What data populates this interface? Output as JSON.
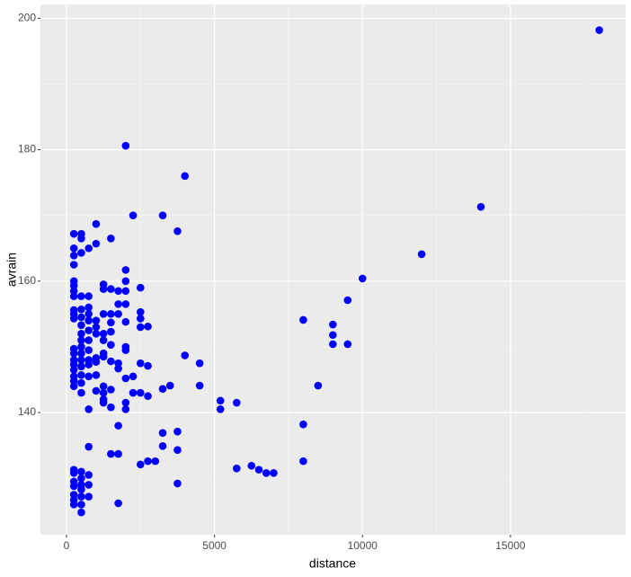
{
  "chart_data": {
    "type": "scatter",
    "xlabel": "distance",
    "ylabel": "avrain",
    "x": [
      18000,
      14000,
      12000,
      10000,
      9500,
      9500,
      9000,
      9000,
      9000,
      8500,
      8000,
      8000,
      8000,
      7000,
      6750,
      6500,
      6250,
      5750,
      5750,
      5200,
      5200,
      4500,
      4500,
      4000,
      4000,
      3750,
      3750,
      3750,
      3750,
      3500,
      3250,
      3250,
      3250,
      3250,
      3000,
      2750,
      2750,
      2750,
      2750,
      2500,
      2500,
      2500,
      2500,
      2500,
      2500,
      2500,
      2250,
      2250,
      2250,
      2000,
      2000,
      2000,
      2000,
      2000,
      2000,
      2000,
      2000,
      2000,
      2000,
      2000,
      1750,
      1750,
      1750,
      1750,
      1750,
      1750,
      1750,
      1750,
      1500,
      1500,
      1500,
      1500,
      1500,
      1500,
      1500,
      1500,
      1500,
      1500,
      1250,
      1250,
      1250,
      1250,
      1250,
      1250,
      1250,
      1250,
      1250,
      1250,
      1250,
      1000,
      1000,
      1000,
      1000,
      1000,
      1000,
      1000,
      1000,
      1000,
      750,
      750,
      750,
      750,
      750,
      750,
      750,
      750,
      750,
      750,
      750,
      750,
      750,
      750,
      750,
      750,
      500,
      500,
      500,
      500,
      500,
      500,
      500,
      500,
      500,
      500,
      500,
      500,
      500,
      500,
      500,
      500,
      500,
      500,
      500,
      500,
      500,
      500,
      500,
      250,
      250,
      250,
      250,
      250,
      250,
      250,
      250,
      250,
      250,
      250,
      250,
      250,
      250,
      250,
      250,
      250,
      250,
      250,
      250,
      250,
      250,
      250,
      250,
      250,
      250
    ],
    "values": [
      198.2,
      171.3,
      164.1,
      160.4,
      157.1,
      150.4,
      153.4,
      151.8,
      150.4,
      144.1,
      154.1,
      138.2,
      132.6,
      130.8,
      130.8,
      131.3,
      131.9,
      131.5,
      141.5,
      141.8,
      140.5,
      147.5,
      144.1,
      148.7,
      176,
      167.6,
      137.1,
      134.3,
      129.2,
      144.1,
      143.6,
      170,
      136.9,
      134.9,
      132.6,
      132.6,
      147.1,
      142.5,
      153.1,
      159,
      155.3,
      154.3,
      153,
      147.5,
      143,
      132.1,
      170,
      145.5,
      143,
      180.6,
      161.7,
      160,
      158.5,
      156.5,
      153.8,
      150,
      149.5,
      145.2,
      141.5,
      140.5,
      158.5,
      156.5,
      155,
      147.5,
      146.7,
      138,
      133.7,
      126.2,
      166.5,
      158.8,
      155,
      153.7,
      152.3,
      150.3,
      147.8,
      143.5,
      140.8,
      133.7,
      159.5,
      158.8,
      155,
      152,
      151,
      149,
      148.5,
      144,
      143,
      142,
      141.5,
      168.7,
      165.7,
      154,
      153,
      152,
      148.3,
      147.7,
      145.7,
      143.3,
      165,
      157.7,
      156,
      155,
      154,
      152.5,
      151,
      149.5,
      148,
      147.3,
      145.5,
      140.5,
      134.8,
      130.5,
      129,
      127.2,
      167.2,
      166.5,
      164.3,
      157.7,
      155.7,
      154.5,
      153.3,
      152,
      151,
      150,
      149,
      148,
      147,
      145.7,
      144.5,
      143,
      131,
      130,
      129,
      128.3,
      127.2,
      126,
      124.8,
      167.2,
      165,
      163.9,
      162.5,
      160,
      159.3,
      158.5,
      157.7,
      155.6,
      155,
      154.3,
      149.7,
      149,
      148,
      147.3,
      146.5,
      145.5,
      144.8,
      144,
      131.3,
      130.8,
      129.5,
      128.8,
      127.5,
      126.7,
      126
    ],
    "color": "#0000ff",
    "xlim": [
      -880,
      18890
    ],
    "ylim": [
      121.4,
      202.1
    ],
    "xticks": [
      0,
      5000,
      10000,
      15000
    ],
    "yticks": [
      140,
      160,
      180,
      200
    ],
    "grid": true
  }
}
